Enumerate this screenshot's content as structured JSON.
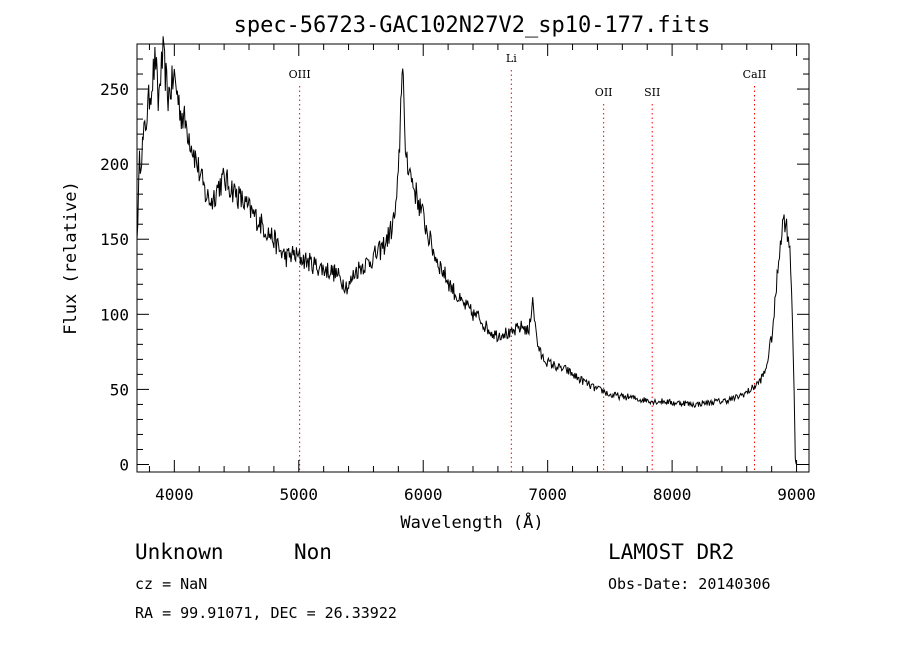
{
  "chart_data": {
    "type": "line",
    "title": "spec-56723-GAC102N27V2_sp10-177.fits",
    "xlabel": "Wavelength (Å)",
    "ylabel": "Flux (relative)",
    "xlim": [
      3700,
      9100
    ],
    "ylim": [
      -5,
      280
    ],
    "xticks": [
      4000,
      5000,
      6000,
      7000,
      8000,
      9000
    ],
    "yticks": [
      0,
      50,
      100,
      150,
      200,
      250
    ],
    "grid": false,
    "line_color": "#000000",
    "marker_color": "#ff0000",
    "lines": [
      {
        "label": "OIII",
        "x": 5007
      },
      {
        "label": "Li",
        "x": 6708
      },
      {
        "label": "OII",
        "x": 7450
      },
      {
        "label": "SII",
        "x": 7840
      },
      {
        "label": "CaII",
        "x": 8662
      }
    ],
    "series": [
      {
        "x": [
          3700,
          3720,
          3750,
          3800,
          3850,
          3870,
          3890,
          3910,
          3950,
          4000,
          4050,
          4100,
          4150,
          4200,
          4250,
          4300,
          4350,
          4400,
          4450,
          4500,
          4550,
          4600,
          4650,
          4700,
          4750,
          4800,
          4850,
          4900,
          4950,
          5000,
          5050,
          5100,
          5150,
          5200,
          5250,
          5300,
          5350,
          5400,
          5450,
          5500,
          5550,
          5600,
          5650,
          5700,
          5750,
          5780,
          5800,
          5810,
          5820,
          5830,
          5840,
          5850,
          5870,
          5900,
          5950,
          6000,
          6050,
          6100,
          6150,
          6200,
          6250,
          6300,
          6350,
          6400,
          6450,
          6500,
          6550,
          6600,
          6650,
          6700,
          6750,
          6800,
          6850,
          6880,
          6900,
          6920,
          6950,
          7000,
          7050,
          7100,
          7150,
          7200,
          7250,
          7300,
          7350,
          7400,
          7450,
          7500,
          7550,
          7600,
          7650,
          7700,
          7750,
          7800,
          7850,
          7900,
          7950,
          8000,
          8050,
          8100,
          8150,
          8200,
          8250,
          8300,
          8350,
          8400,
          8450,
          8500,
          8550,
          8600,
          8650,
          8700,
          8750,
          8800,
          8820,
          8850,
          8870,
          8900,
          8920,
          8940,
          8960,
          8980,
          8990,
          9000
        ],
        "y": [
          150,
          200,
          215,
          245,
          270,
          240,
          260,
          272,
          245,
          258,
          235,
          225,
          210,
          195,
          180,
          175,
          185,
          190,
          185,
          180,
          175,
          170,
          165,
          160,
          155,
          150,
          142,
          138,
          140,
          138,
          136,
          134,
          132,
          130,
          129,
          127,
          122,
          118,
          128,
          132,
          134,
          138,
          142,
          148,
          158,
          170,
          190,
          215,
          240,
          270,
          255,
          215,
          205,
          192,
          178,
          165,
          150,
          138,
          130,
          122,
          115,
          108,
          105,
          100,
          98,
          92,
          88,
          86,
          88,
          86,
          90,
          92,
          88,
          112,
          92,
          80,
          72,
          68,
          66,
          64,
          63,
          60,
          57,
          55,
          52,
          50,
          49,
          46,
          46,
          45,
          45,
          44,
          43,
          43,
          42,
          42,
          42,
          41,
          41,
          41,
          40,
          40,
          41,
          41,
          42,
          42,
          43,
          44,
          46,
          48,
          51,
          55,
          62,
          85,
          100,
          130,
          150,
          165,
          158,
          150,
          120,
          50,
          5,
          0
        ]
      }
    ]
  },
  "info": {
    "object_class": "Unknown",
    "subclass": "Non",
    "cz": "cz = NaN",
    "coords": "RA =  99.91071, DEC =  26.33922",
    "survey": "LAMOST DR2",
    "obs_date": "Obs-Date: 20140306"
  }
}
